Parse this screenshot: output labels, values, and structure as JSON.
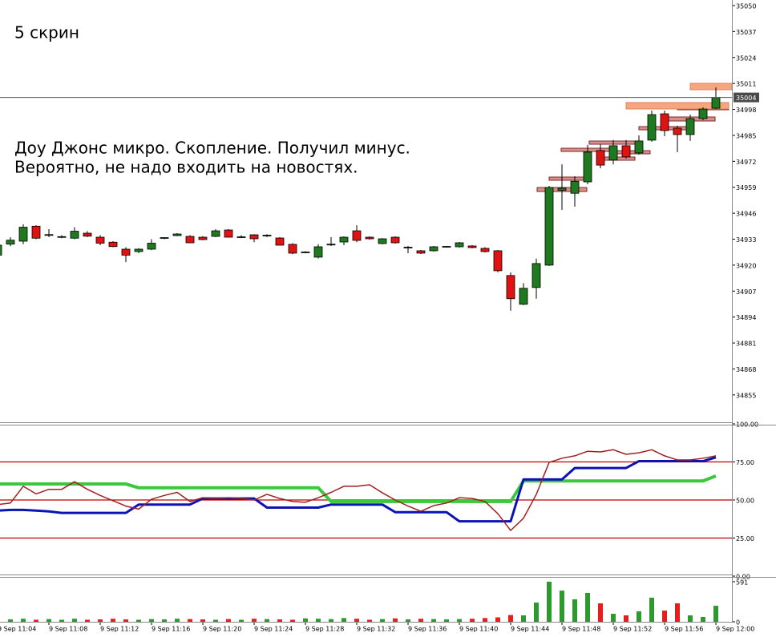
{
  "chart_data": [
    {
      "type": "candlestick",
      "annotations": [
        "5 скрин",
        "Доу Джонс микро. Скопление. Получил минус.",
        "Вероятно, не надо входить на новостях."
      ],
      "ylim": [
        34841.3,
        35052.8
      ],
      "yticks": [
        35050,
        35037,
        35024,
        35011,
        34998,
        34985,
        34972,
        34959,
        34946,
        34933,
        34920,
        34907,
        34894,
        34881,
        34868,
        34855
      ],
      "last_price": 35004,
      "colors": {
        "up": "#1f7a1f",
        "down": "#e01212"
      },
      "open": [
        34925,
        34930.5,
        34932,
        34939.5,
        34935,
        34934,
        34933.5,
        34936,
        34934,
        34931.5,
        34928,
        34926.8,
        34928,
        34933.5,
        34934.8,
        34934.4,
        34934,
        34934.4,
        34937.6,
        34934,
        34935.2,
        34934.8,
        34933.6,
        34930.4,
        34926.4,
        34924,
        34930.2,
        34931.6,
        34937.2,
        34934,
        34930.8,
        34934,
        34928.8,
        34927.2,
        34927.2,
        34929.2,
        34929.2,
        34929.6,
        34928.4,
        34927.2,
        34914.8,
        34900.4,
        34908.8,
        34920,
        34957.5,
        34956,
        34961.7,
        34977.4,
        34972.6,
        34979.8,
        34976.2,
        34982.6,
        34995.8,
        34988.6,
        34985.4,
        34993.4,
        34998.6
      ],
      "high": [
        34932,
        34934,
        34940.5,
        34940,
        34938,
        34935,
        34939,
        34937,
        34935,
        34932,
        34929,
        34928.5,
        34933,
        34934,
        34936,
        34935,
        34934.5,
        34938,
        34938,
        34935,
        34935.5,
        34935.5,
        34934,
        34931,
        34927,
        34930.5,
        34934,
        34934.4,
        34940,
        34934.4,
        34933.5,
        34934.4,
        34929.6,
        34927.6,
        34929.6,
        34929.6,
        34931.6,
        34930,
        34929,
        34927.6,
        34916.4,
        34911,
        34923.2,
        34959.7,
        34970.5,
        34964.5,
        34980.2,
        34980.6,
        34982.6,
        34982.6,
        34985,
        34997.4,
        34997.4,
        34989.8,
        34995.4,
        34999,
        35009
      ],
      "low": [
        34924,
        34929.5,
        34930.5,
        34933,
        34934,
        34933.5,
        34933,
        34934,
        34930,
        34929,
        34921.5,
        34926,
        34927.5,
        34933,
        34934.5,
        34931,
        34932.5,
        34934,
        34934,
        34933.5,
        34931.5,
        34934,
        34930,
        34925.5,
        34926,
        34923.3,
        34929.6,
        34930,
        34931.5,
        34932.8,
        34930.4,
        34930.8,
        34926,
        34925.6,
        34926.8,
        34928.8,
        34928.8,
        34928.4,
        34926.4,
        34916.4,
        34897.2,
        34900,
        34903.2,
        34919.6,
        34947.7,
        34949.3,
        34960.5,
        34968.5,
        34970.5,
        34973.4,
        34975.4,
        34981.8,
        34984.6,
        34976.6,
        34982.2,
        34992.6,
        34998.2
      ],
      "close": [
        34930,
        34932.5,
        34939,
        34933.5,
        34935.3,
        34934.3,
        34937,
        34934.5,
        34931,
        34929.3,
        34925,
        34928,
        34931,
        34933.8,
        34935.6,
        34931.2,
        34932.8,
        34937.2,
        34934,
        34934.2,
        34933.2,
        34935,
        34930,
        34926,
        34926.6,
        34929.2,
        34930.5,
        34934,
        34932.4,
        34933.2,
        34933.2,
        34931.2,
        34929,
        34926,
        34929.2,
        34929.4,
        34931.2,
        34928.8,
        34926.8,
        34917.2,
        34903.2,
        34908.4,
        34920.8,
        34958.9,
        34958.5,
        34962,
        34976.6,
        34970.1,
        34979.8,
        34974.2,
        34982.2,
        34995.4,
        34987.4,
        34985.4,
        34993.4,
        34998.2,
        35003.9
      ]
    },
    {
      "type": "line",
      "ylim": [
        0,
        100
      ],
      "yticks": [
        {
          "value": 100,
          "label": "100.00"
        },
        {
          "value": 75,
          "label": "75.00"
        },
        {
          "value": 50,
          "label": "50.00"
        },
        {
          "value": 25,
          "label": "25.00"
        },
        {
          "value": 0,
          "label": "0.00"
        }
      ],
      "levels": [
        75,
        50,
        25
      ],
      "level_color": "#c00000",
      "series": [
        {
          "color": "#3cc83c",
          "width": 4,
          "values": [
            60.5,
            60.5,
            60.5,
            60.5,
            60.5,
            60.5,
            60.5,
            60.5,
            60.5,
            60.5,
            60.5,
            58,
            58,
            58,
            58,
            58,
            58,
            58,
            58,
            58,
            58,
            58,
            58,
            58,
            58,
            58,
            49,
            49,
            49,
            49,
            49,
            49,
            49,
            49,
            49,
            49,
            49,
            49,
            49,
            49,
            49,
            62.5,
            62.5,
            62.5,
            62.5,
            62.5,
            62.5,
            62.5,
            62.5,
            62.5,
            62.5,
            62.5,
            62.5,
            62.5,
            62.5,
            62.5,
            65.8
          ]
        },
        {
          "color": "#0a14b4",
          "width": 3,
          "values": [
            43,
            43.5,
            43.5,
            43,
            42.5,
            41.5,
            41.5,
            41.5,
            41.5,
            41.5,
            41.5,
            47,
            47,
            47,
            47,
            47,
            51,
            51,
            51,
            51,
            51,
            45,
            45,
            45,
            45,
            45,
            47,
            47,
            47,
            47,
            47,
            42,
            42,
            42,
            42,
            42,
            36,
            36,
            36,
            36,
            36,
            63.5,
            63.5,
            63.5,
            63.5,
            71,
            71,
            71,
            71,
            71,
            75.5,
            75.5,
            75.5,
            75.5,
            75.5,
            75.5,
            78
          ]
        },
        {
          "color": "#a02020",
          "width": 1.5,
          "values": [
            47,
            48,
            59,
            54,
            57,
            57,
            62,
            57,
            53,
            49.5,
            46,
            44,
            50.5,
            53,
            55,
            49,
            51.5,
            51,
            51.5,
            51,
            50,
            53.7,
            51,
            49,
            48.5,
            51.5,
            55,
            59,
            59,
            60,
            54.7,
            50,
            46,
            42.6,
            46.3,
            48,
            51.5,
            51,
            49,
            41,
            30,
            38,
            53.7,
            74.7,
            77.4,
            79,
            82,
            81.6,
            83,
            80,
            81,
            83,
            79,
            76.3,
            76.3,
            77.4,
            79
          ]
        }
      ]
    },
    {
      "type": "bar",
      "ylim": [
        0,
        662
      ],
      "yticks": [
        591,
        0
      ],
      "colors": {
        "up": "#2e9a2e",
        "down": "#e61e1e"
      },
      "categories": [
        "9 Sep 11:04",
        null,
        null,
        null,
        "9 Sep 11:08",
        null,
        null,
        null,
        "9 Sep 11:12",
        null,
        null,
        null,
        "9 Sep 11:16",
        null,
        null,
        null,
        "9 Sep 11:20",
        null,
        null,
        null,
        "9 Sep 11:24",
        null,
        null,
        null,
        "9 Sep 11:28",
        null,
        null,
        null,
        "9 Sep 11:32",
        null,
        null,
        null,
        "9 Sep 11:36",
        null,
        null,
        null,
        "9 Sep 11:40",
        null,
        null,
        null,
        "9 Sep 11:44",
        null,
        null,
        null,
        "9 Sep 11:48",
        null,
        null,
        null,
        "9 Sep 11:52",
        null,
        null,
        null,
        "9 Sep 11:56",
        null,
        null,
        null,
        "9 Sep 12:00"
      ],
      "values": [
        40,
        35,
        45,
        30,
        40,
        30,
        45,
        30,
        35,
        45,
        35,
        30,
        40,
        35,
        45,
        40,
        35,
        30,
        40,
        30,
        45,
        40,
        35,
        30,
        50,
        45,
        40,
        55,
        45,
        30,
        40,
        50,
        35,
        45,
        40,
        35,
        40,
        45,
        55,
        65,
        100,
        95,
        284,
        591,
        460,
        331,
        426,
        272,
        118,
        95,
        154,
        355,
        165,
        272,
        95,
        71,
        236
      ]
    }
  ]
}
